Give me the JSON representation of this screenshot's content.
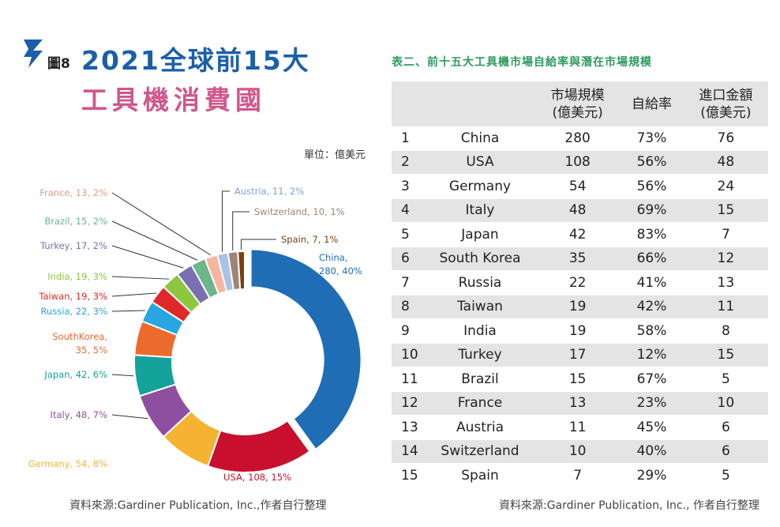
{
  "header": {
    "fig_label": "圖8",
    "title_line1": "2021全球前15大",
    "title_line2": "工具機消費國",
    "unit": "單位：億美元",
    "source_left": "資料來源:Gardiner Publication, Inc.,作者自行整理",
    "source_right": "資料來源:Gardiner Publication, Inc., 作者自行整理"
  },
  "colors": {
    "title1": "#1b5fa8",
    "title2": "#d0568c",
    "table_title": "#2f9a5e",
    "table_shade": "#e4e4e4"
  },
  "chart_data": {
    "type": "pie",
    "subtype": "donut",
    "slices": [
      {
        "label": "China, 280, 40%",
        "name": "China",
        "value": 280,
        "percent": 40,
        "color": "#1f6db5",
        "exploded": true
      },
      {
        "label": "USA, 108, 15%",
        "name": "USA",
        "value": 108,
        "percent": 15,
        "color": "#c8102e"
      },
      {
        "label": "Germany, 54, 8%",
        "name": "Germany",
        "value": 54,
        "percent": 8,
        "color": "#f5b331"
      },
      {
        "label": "Italy, 48, 7%",
        "name": "Italy",
        "value": 48,
        "percent": 7,
        "color": "#8e4fa0"
      },
      {
        "label": "Japan, 42, 6%",
        "name": "Japan",
        "value": 42,
        "percent": 6,
        "color": "#13a39b"
      },
      {
        "label": "SouthKorea, 35, 5%",
        "name": "SouthKorea",
        "value": 35,
        "percent": 5,
        "color": "#ec6a2c"
      },
      {
        "label": "Russia, 22, 3%",
        "name": "Russia",
        "value": 22,
        "percent": 3,
        "color": "#27a6e1"
      },
      {
        "label": "Taiwan, 19, 3%",
        "name": "Taiwan",
        "value": 19,
        "percent": 3,
        "color": "#e02828"
      },
      {
        "label": "India, 19, 3%",
        "name": "India",
        "value": 19,
        "percent": 3,
        "color": "#8dc63f"
      },
      {
        "label": "Turkey, 17, 2%",
        "name": "Turkey",
        "value": 17,
        "percent": 2,
        "color": "#7a6fb0"
      },
      {
        "label": "Brazil, 15, 2%",
        "name": "Brazil",
        "value": 15,
        "percent": 2,
        "color": "#6bb68b"
      },
      {
        "label": "France, 13, 2%",
        "name": "France",
        "value": 13,
        "percent": 2,
        "color": "#f7b5a0"
      },
      {
        "label": "Austria, 11, 2%",
        "name": "Austria",
        "value": 11,
        "percent": 2,
        "color": "#a9c2e8"
      },
      {
        "label": "Switzerland, 10, 1%",
        "name": "Switzerland",
        "value": 10,
        "percent": 1,
        "color": "#9c8576"
      },
      {
        "label": "Spain, 7, 1%",
        "name": "Spain",
        "value": 7,
        "percent": 1,
        "color": "#7a3f0c"
      }
    ]
  },
  "table": {
    "title": "表二、前十五大工具機市場自給率與潛在市場規模",
    "headers": [
      "",
      "",
      "市場規模\n(億美元)",
      "自給率",
      "進口金額\n(億美元)"
    ],
    "rows": [
      [
        "1",
        "China",
        "280",
        "73%",
        "76"
      ],
      [
        "2",
        "USA",
        "108",
        "56%",
        "48"
      ],
      [
        "3",
        "Germany",
        "54",
        "56%",
        "24"
      ],
      [
        "4",
        "Italy",
        "48",
        "69%",
        "15"
      ],
      [
        "5",
        "Japan",
        "42",
        "83%",
        "7"
      ],
      [
        "6",
        "South Korea",
        "35",
        "66%",
        "12"
      ],
      [
        "7",
        "Russia",
        "22",
        "41%",
        "13"
      ],
      [
        "8",
        "Taiwan",
        "19",
        "42%",
        "11"
      ],
      [
        "9",
        "India",
        "19",
        "58%",
        "8"
      ],
      [
        "10",
        "Turkey",
        "17",
        "12%",
        "15"
      ],
      [
        "11",
        "Brazil",
        "15",
        "67%",
        "5"
      ],
      [
        "12",
        "France",
        "13",
        "23%",
        "10"
      ],
      [
        "13",
        "Austria",
        "11",
        "45%",
        "6"
      ],
      [
        "14",
        "Switzerland",
        "10",
        "40%",
        "6"
      ],
      [
        "15",
        "Spain",
        "7",
        "29%",
        "5"
      ]
    ]
  }
}
